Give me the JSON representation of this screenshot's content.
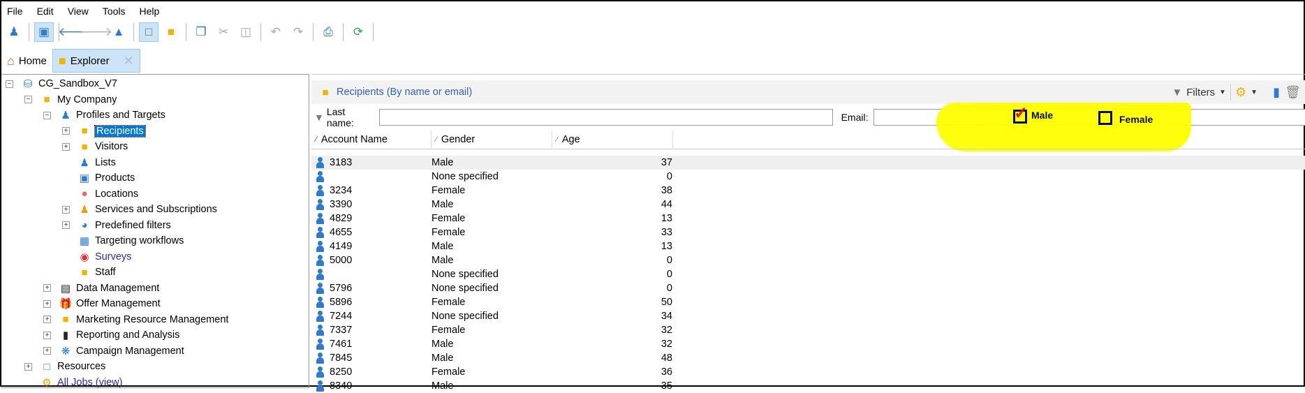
{
  "menu": [
    "File",
    "Edit",
    "View",
    "Tools",
    "Help"
  ],
  "tabs": [
    {
      "label": "Home",
      "icon": "home-icon"
    },
    {
      "label": "Explorer",
      "icon": "folder-icon"
    }
  ],
  "tree": [
    {
      "label": "CG_Sandbox_V7",
      "level": 0,
      "exp": "-",
      "icon": "database-icon"
    },
    {
      "label": "My Company",
      "level": 1,
      "exp": "-",
      "icon": "folder-icon"
    },
    {
      "label": "Profiles and Targets",
      "level": 2,
      "exp": "-",
      "icon": "people-icon"
    },
    {
      "label": "Recipients",
      "level": 3,
      "exp": "+",
      "icon": "recipients-folder-icon",
      "selected": true
    },
    {
      "label": "Visitors",
      "level": 3,
      "exp": "+",
      "icon": "visitors-folder-icon"
    },
    {
      "label": "Lists",
      "level": 3,
      "exp": "",
      "icon": "lists-icon"
    },
    {
      "label": "Products",
      "level": 3,
      "exp": "",
      "icon": "box-icon"
    },
    {
      "label": "Locations",
      "level": 3,
      "exp": "",
      "icon": "location-pin-icon"
    },
    {
      "label": "Services and Subscriptions",
      "level": 3,
      "exp": "+",
      "icon": "person-icon"
    },
    {
      "label": "Predefined filters",
      "level": 3,
      "exp": "+",
      "icon": "filter-icon"
    },
    {
      "label": "Targeting workflows",
      "level": 3,
      "exp": "",
      "icon": "workflow-icon"
    },
    {
      "label": "Surveys",
      "level": 3,
      "exp": "",
      "icon": "survey-icon",
      "link": true
    },
    {
      "label": "Staff",
      "level": 3,
      "exp": "",
      "icon": "folder-icon"
    },
    {
      "label": "Data Management",
      "level": 2,
      "exp": "+",
      "icon": "data-icon"
    },
    {
      "label": "Offer Management",
      "level": 2,
      "exp": "+",
      "icon": "gift-icon"
    },
    {
      "label": "Marketing Resource Management",
      "level": 2,
      "exp": "+",
      "icon": "folder-gear-icon"
    },
    {
      "label": "Reporting and Analysis",
      "level": 2,
      "exp": "+",
      "icon": "books-icon"
    },
    {
      "label": "Campaign Management",
      "level": 2,
      "exp": "+",
      "icon": "campaign-icon"
    },
    {
      "label": "Resources",
      "level": 1,
      "exp": "+",
      "icon": "resources-icon"
    },
    {
      "label": "All Jobs (view)",
      "level": 1,
      "exp": "",
      "icon": "gears-icon",
      "link": true
    }
  ],
  "panel": {
    "title": "Recipients (By name or email)",
    "filters_label": "Filters"
  },
  "filter": {
    "last_name_label": "Last name:",
    "last_name_value": "",
    "email_label": "Email:",
    "email_value": ""
  },
  "annotation": {
    "male_label": "Male",
    "male_checked": true,
    "female_label": "Female",
    "female_checked": false,
    "highlight_color": "#ffff00"
  },
  "columns": [
    "Account Name",
    "Gender",
    "Age"
  ],
  "rows": [
    [
      "3183",
      "Male",
      "37"
    ],
    [
      "",
      "None specified",
      "0"
    ],
    [
      "3234",
      "Female",
      "38"
    ],
    [
      "3390",
      "Male",
      "44"
    ],
    [
      "4829",
      "Female",
      "13"
    ],
    [
      "4655",
      "Female",
      "33"
    ],
    [
      "4149",
      "Male",
      "13"
    ],
    [
      "5000",
      "Male",
      "0"
    ],
    [
      "",
      "None specified",
      "0"
    ],
    [
      "5796",
      "None specified",
      "0"
    ],
    [
      "5896",
      "Female",
      "50"
    ],
    [
      "7244",
      "None specified",
      "34"
    ],
    [
      "7337",
      "Female",
      "32"
    ],
    [
      "7461",
      "Male",
      "32"
    ],
    [
      "7845",
      "Male",
      "48"
    ],
    [
      "8250",
      "Female",
      "36"
    ],
    [
      "8340",
      "Male",
      "35"
    ]
  ]
}
